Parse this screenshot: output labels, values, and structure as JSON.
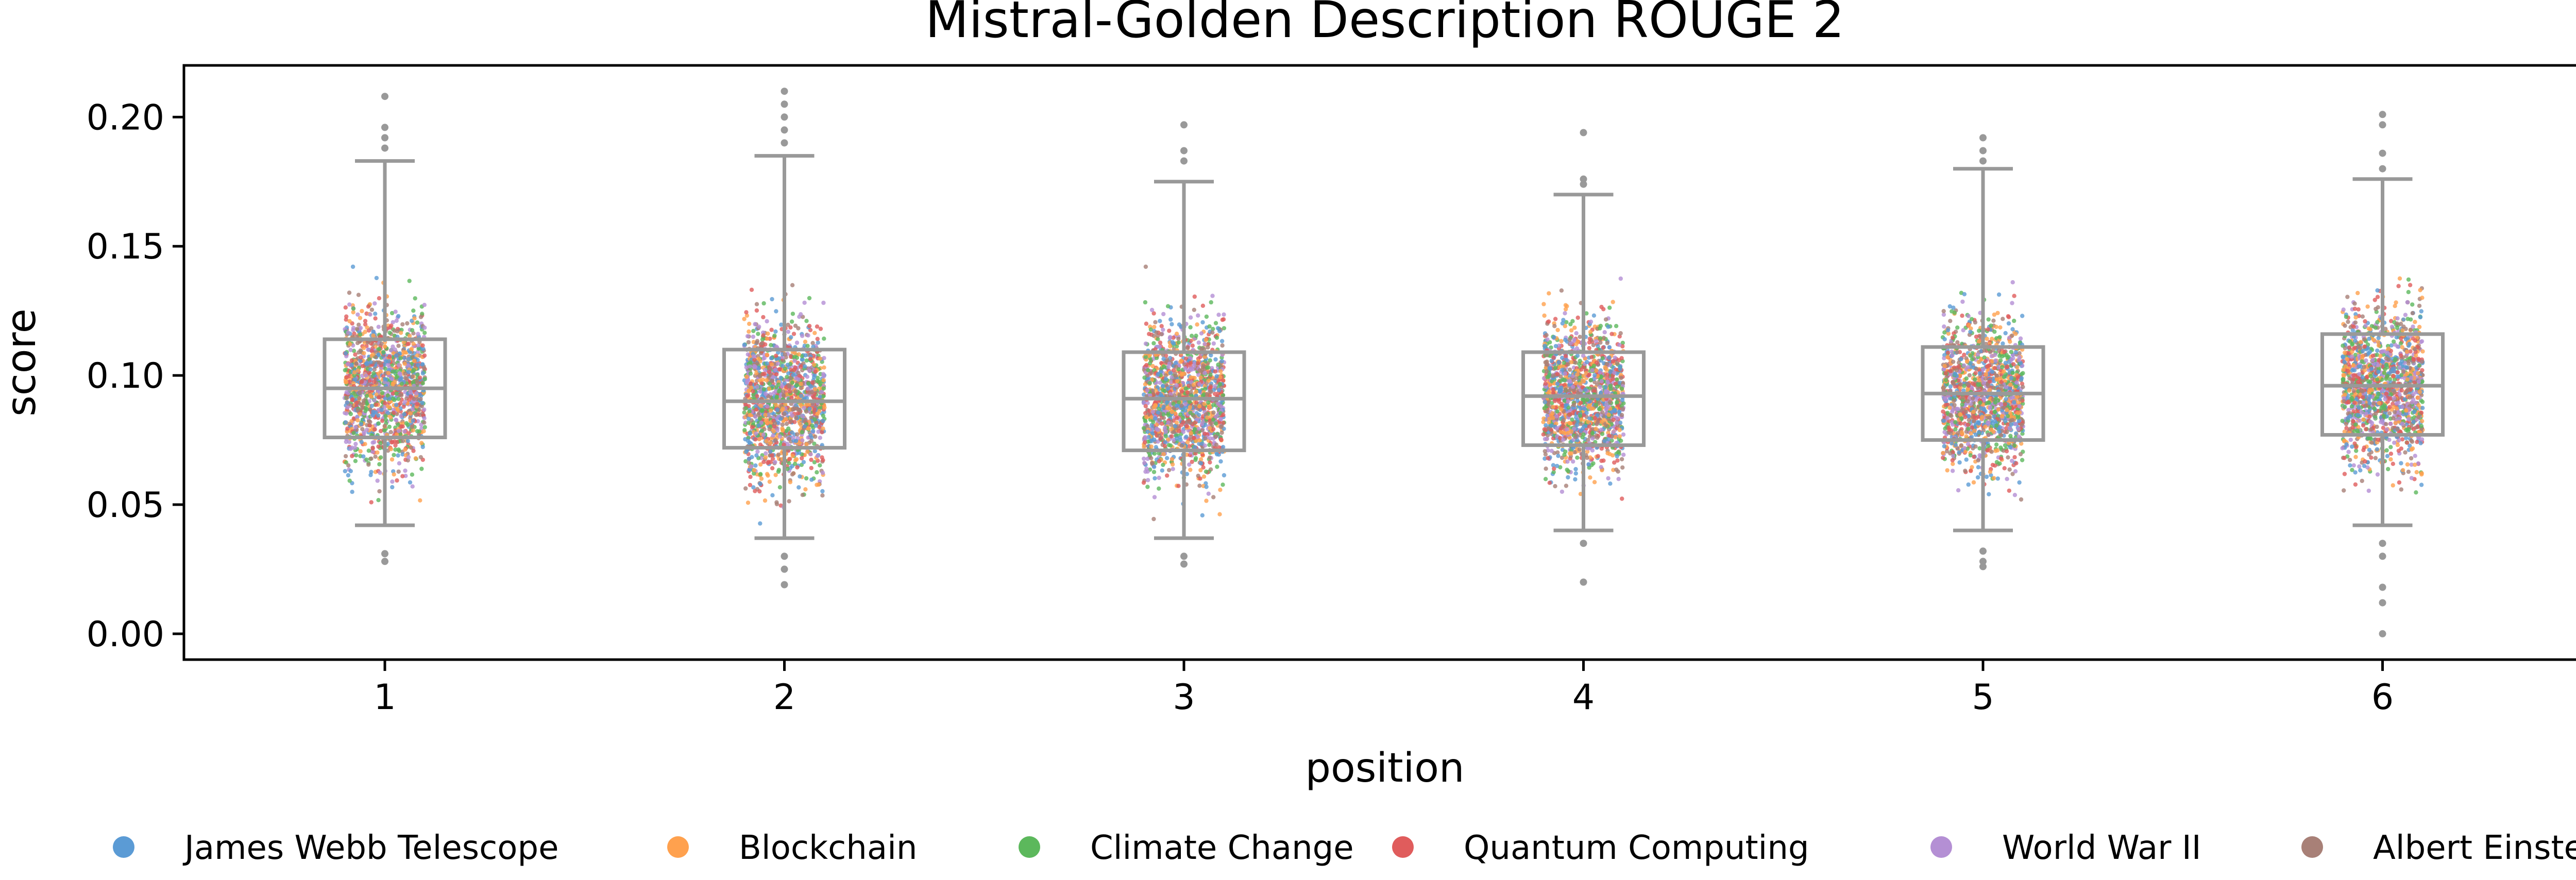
{
  "chart_data": {
    "type": "box",
    "title": "Mistral-Golden Description ROUGE 2",
    "xlabel": "position",
    "ylabel": "score",
    "categories": [
      "1",
      "2",
      "3",
      "4",
      "5",
      "6"
    ],
    "ylim": [
      -0.01,
      0.22
    ],
    "yticks": [
      "0.00",
      "0.05",
      "0.10",
      "0.15",
      "0.20"
    ],
    "grid": false,
    "legend_position": "bottom",
    "box_color": "#999999",
    "series": [
      {
        "name": "James Webb Telescope",
        "color": "#5b9bd5"
      },
      {
        "name": "Blockchain",
        "color": "#ffa14e"
      },
      {
        "name": "Climate Change",
        "color": "#5cb85c"
      },
      {
        "name": "Quantum Computing",
        "color": "#e05c5c"
      },
      {
        "name": "World War II",
        "color": "#b48fd4"
      },
      {
        "name": "Albert Einstein",
        "color": "#a88077"
      }
    ],
    "boxes": [
      {
        "position": "1",
        "whisker_low": 0.042,
        "q1": 0.076,
        "median": 0.095,
        "q3": 0.114,
        "whisker_high": 0.183,
        "outliers": [
          0.188,
          0.192,
          0.196,
          0.208,
          0.031,
          0.028
        ]
      },
      {
        "position": "2",
        "whisker_low": 0.037,
        "q1": 0.072,
        "median": 0.09,
        "q3": 0.11,
        "whisker_high": 0.185,
        "outliers": [
          0.19,
          0.195,
          0.2,
          0.205,
          0.21,
          0.03,
          0.025,
          0.019
        ]
      },
      {
        "position": "3",
        "whisker_low": 0.037,
        "q1": 0.071,
        "median": 0.091,
        "q3": 0.109,
        "whisker_high": 0.175,
        "outliers": [
          0.183,
          0.187,
          0.197,
          0.03,
          0.027
        ]
      },
      {
        "position": "4",
        "whisker_low": 0.04,
        "q1": 0.073,
        "median": 0.092,
        "q3": 0.109,
        "whisker_high": 0.17,
        "outliers": [
          0.174,
          0.176,
          0.194,
          0.035,
          0.02
        ]
      },
      {
        "position": "5",
        "whisker_low": 0.04,
        "q1": 0.075,
        "median": 0.093,
        "q3": 0.111,
        "whisker_high": 0.18,
        "outliers": [
          0.183,
          0.187,
          0.192,
          0.032,
          0.028,
          0.026
        ]
      },
      {
        "position": "6",
        "whisker_low": 0.042,
        "q1": 0.077,
        "median": 0.096,
        "q3": 0.116,
        "whisker_high": 0.176,
        "outliers": [
          0.18,
          0.186,
          0.197,
          0.201,
          0.035,
          0.03,
          0.018,
          0.012,
          0.0
        ]
      }
    ]
  }
}
